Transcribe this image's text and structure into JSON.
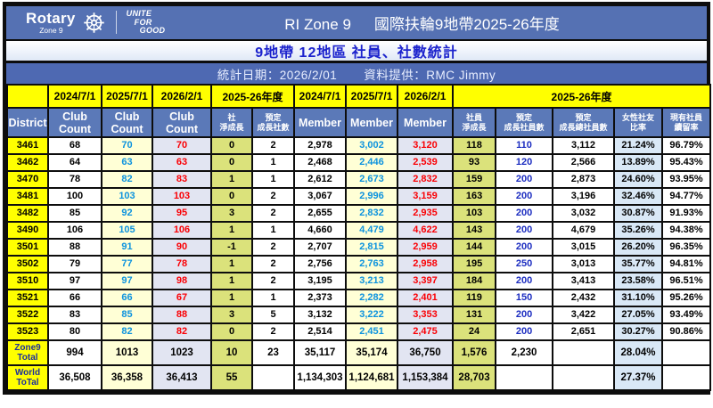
{
  "banner": {
    "logo": {
      "brand": "Rotary",
      "zone": "Zone 9",
      "tagline_lines": [
        "UNITE",
        "FOR",
        "GOOD"
      ]
    },
    "title_left": "RI Zone 9",
    "title_right": "國際扶輪9地帶2025-26年度",
    "subtitle": "9地帶 12地區 社員、社數統計",
    "stats_date": "統計日期：2026/2/01",
    "data_provider": "資料提供：RMC Jimmy"
  },
  "table": {
    "top_headers": [
      {
        "label": "",
        "span": 1
      },
      {
        "label": "2024/7/1",
        "span": 1
      },
      {
        "label": "2025/7/1",
        "span": 1
      },
      {
        "label": "2026/2/1",
        "span": 1
      },
      {
        "label": "2025-26年度",
        "span": 2
      },
      {
        "label": "2024/7/1",
        "span": 1
      },
      {
        "label": "2025/7/1",
        "span": 1
      },
      {
        "label": "2026/2/1",
        "span": 1
      },
      {
        "label": "2025-26年度",
        "span": 5
      }
    ],
    "col_headers": [
      "District",
      "Club Count",
      "Club Count",
      "Club Count",
      "社\n淨成長",
      "預定\n成長社數",
      "Member",
      "Member",
      "Member",
      "社員\n淨成長",
      "預定\n成長社員數",
      "預定\n成長總社員數",
      "女性社友\n比率",
      "現有社員\n續留率"
    ],
    "rows": [
      [
        "3461",
        "68",
        "70",
        "70",
        "0",
        "2",
        "2,978",
        "3,002",
        "3,120",
        "118",
        "110",
        "3,112",
        "21.24%",
        "96.79%"
      ],
      [
        "3462",
        "64",
        "63",
        "63",
        "0",
        "1",
        "2,468",
        "2,446",
        "2,539",
        "93",
        "120",
        "2,566",
        "13.89%",
        "95.43%"
      ],
      [
        "3470",
        "78",
        "82",
        "83",
        "1",
        "1",
        "2,612",
        "2,673",
        "2,832",
        "159",
        "200",
        "2,873",
        "24.60%",
        "93.95%"
      ],
      [
        "3481",
        "100",
        "103",
        "103",
        "0",
        "2",
        "3,067",
        "2,996",
        "3,159",
        "163",
        "200",
        "3,196",
        "32.46%",
        "94.77%"
      ],
      [
        "3482",
        "85",
        "92",
        "95",
        "3",
        "2",
        "2,655",
        "2,832",
        "2,935",
        "103",
        "200",
        "3,032",
        "30.87%",
        "91.93%"
      ],
      [
        "3490",
        "106",
        "105",
        "106",
        "1",
        "1",
        "4,660",
        "4,479",
        "4,622",
        "143",
        "200",
        "4,679",
        "35.26%",
        "94.38%"
      ],
      [
        "3501",
        "88",
        "91",
        "90",
        "-1",
        "2",
        "2,707",
        "2,815",
        "2,959",
        "144",
        "200",
        "3,015",
        "26.20%",
        "96.35%"
      ],
      [
        "3502",
        "79",
        "77",
        "78",
        "1",
        "2",
        "2,756",
        "2,763",
        "2,958",
        "195",
        "250",
        "3,013",
        "35.77%",
        "94.81%"
      ],
      [
        "3510",
        "97",
        "97",
        "98",
        "1",
        "2",
        "3,195",
        "3,213",
        "3,397",
        "184",
        "200",
        "3,413",
        "23.58%",
        "96.51%"
      ],
      [
        "3521",
        "66",
        "66",
        "67",
        "1",
        "1",
        "2,373",
        "2,282",
        "2,401",
        "119",
        "150",
        "2,432",
        "31.10%",
        "95.26%"
      ],
      [
        "3522",
        "83",
        "85",
        "88",
        "3",
        "5",
        "3,132",
        "3,222",
        "3,353",
        "131",
        "200",
        "3,422",
        "27.05%",
        "93.49%"
      ],
      [
        "3523",
        "80",
        "82",
        "82",
        "0",
        "2",
        "2,514",
        "2,451",
        "2,475",
        "24",
        "200",
        "2,651",
        "30.27%",
        "90.86%"
      ]
    ],
    "totals": [
      [
        "Zone9\nTotal",
        "994",
        "1013",
        "1023",
        "10",
        "23",
        "35,117",
        "35,174",
        "36,750",
        "1,576",
        "2,230",
        "",
        "28.04%",
        ""
      ],
      [
        "World\nToTal",
        "36,508",
        "36,358",
        "36,413",
        "55",
        "",
        "1,134,303",
        "1,124,681",
        "1,153,384",
        "28,703",
        "",
        "",
        "27.37%",
        ""
      ]
    ]
  },
  "colors": {
    "banner_blue": "#5571b3",
    "info_bar_blue": "#4e69b2",
    "subtitle_text_blue": "#1c23cd",
    "header_cell_blue": "#5b79b8",
    "district_yellow": "#ffff00",
    "col_2025_bg": "#ffffd6",
    "col_2026_bg": "#e2e5f2",
    "net_growth_green": "#dbe27b",
    "female_ratio_bg": "#d9e8f6",
    "value_blue_text": "#0d93de",
    "value_red_text": "#fa0005",
    "planned_blue_text": "#1b2cc0",
    "total_label_navy": "#1d2f9c",
    "border_black": "#0d0d0d"
  }
}
